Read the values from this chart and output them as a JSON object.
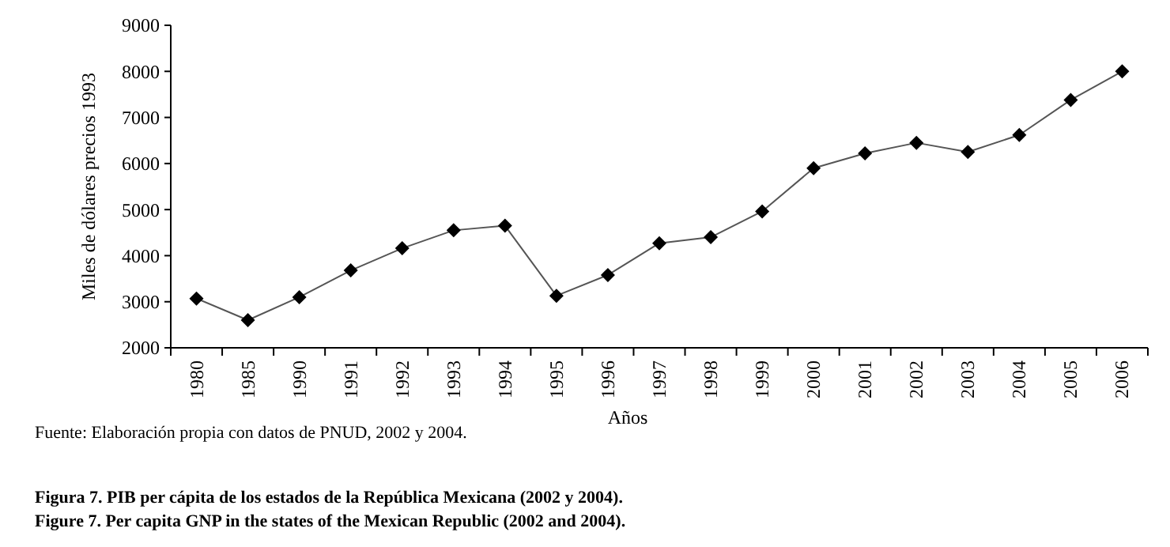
{
  "chart_data": {
    "type": "line",
    "xlabel": "Años",
    "ylabel": "Miles de dólares precios 1993",
    "categories": [
      "1980",
      "1985",
      "1990",
      "1991",
      "1992",
      "1993",
      "1994",
      "1995",
      "1996",
      "1997",
      "1998",
      "1999",
      "2000",
      "2001",
      "2002",
      "2003",
      "2004",
      "2005",
      "2006"
    ],
    "series": [
      {
        "color": "#000000",
        "values": [
          3070,
          2600,
          3100,
          3680,
          4160,
          4550,
          4650,
          3130,
          3580,
          4270,
          4400,
          4960,
          5900,
          6220,
          6450,
          6250,
          6620,
          7380,
          8000
        ]
      }
    ],
    "ylim": [
      2000,
      9000
    ],
    "yticks": [
      2000,
      3000,
      4000,
      5000,
      6000,
      7000,
      8000,
      9000
    ],
    "grid": false,
    "marker": "diamond",
    "line_style": "solid",
    "annotations": [
      "Fuente: Elaboración propia con datos de PNUD, 2002 y 2004.",
      "Figura 7. PIB per cápita de los estados de la República Mexicana (2002 y 2004).",
      "Figure 7. Per capita GNP in the states of the Mexican Republic (2002 and 2004)."
    ]
  }
}
